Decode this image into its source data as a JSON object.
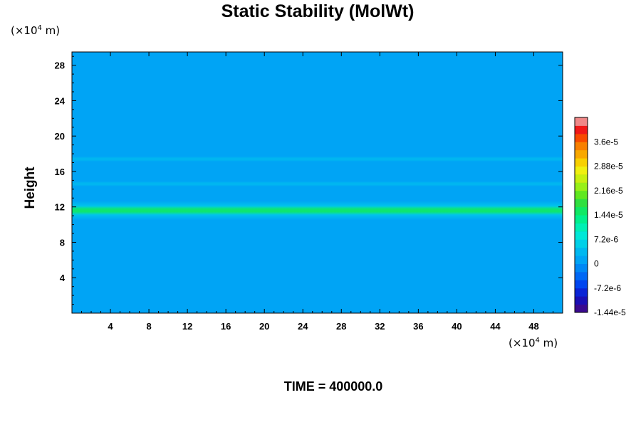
{
  "chart_data": {
    "type": "heatmap",
    "title": "Static Stability (MolWt)",
    "ylabel": "Height",
    "xlabel": "",
    "x_unit": {
      "prefix": "(×10",
      "exponent": "4",
      "suffix": " m)"
    },
    "y_unit": {
      "prefix": "(×10",
      "exponent": "4",
      "suffix": " m)"
    },
    "xlim": [
      0,
      51
    ],
    "ylim": [
      0,
      29.5
    ],
    "x_ticks": [
      4,
      8,
      12,
      16,
      20,
      24,
      28,
      32,
      36,
      40,
      44,
      48
    ],
    "y_ticks": [
      4,
      8,
      12,
      16,
      20,
      24,
      28
    ],
    "colorbar": {
      "min": -1.44e-05,
      "max": 4.32e-05,
      "labels": [
        "3.6e-5",
        "2.88e-5",
        "2.16e-5",
        "1.44e-5",
        "7.2e-6",
        "0",
        "-7.2e-6",
        "-1.44e-5"
      ],
      "label_values": [
        3.6e-05,
        2.88e-05,
        2.16e-05,
        1.44e-05,
        7.2e-06,
        0,
        -7.2e-06,
        -1.44e-05
      ],
      "levels": 24,
      "colors": [
        "#3a0a8f",
        "#1a0fb4",
        "#0a24d6",
        "#0046f0",
        "#0068f5",
        "#0088f5",
        "#00a4f5",
        "#00b8f0",
        "#00d0e8",
        "#00e8d8",
        "#00f0b4",
        "#00f08c",
        "#10e864",
        "#30e040",
        "#60e820",
        "#98f018",
        "#c8f010",
        "#f0f010",
        "#f8d000",
        "#f8a800",
        "#f88000",
        "#f84a00",
        "#f01818",
        "#f08888"
      ]
    },
    "field_description_bands": [
      {
        "y": 11.6,
        "half_width": 0.5,
        "value": 1.6e-05
      },
      {
        "y": 11.6,
        "half_width": 1.1,
        "value": 5.5e-06
      },
      {
        "y": 14.6,
        "half_width": 0.3,
        "value": 3.5e-06
      },
      {
        "y": 17.4,
        "half_width": 0.3,
        "value": 3e-06
      },
      {
        "y": 19.8,
        "half_width": 0.2,
        "value": 2e-06
      }
    ],
    "background_value": 0,
    "grid": false,
    "footer": "TIME = 400000.0"
  }
}
